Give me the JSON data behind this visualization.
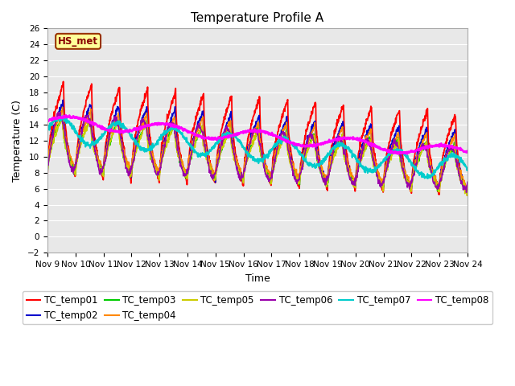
{
  "title": "Temperature Profile A",
  "xlabel": "Time",
  "ylabel": "Temperature (C)",
  "ylim": [
    -2,
    26
  ],
  "annotation": "HS_met",
  "series_colors": {
    "TC_temp01": "#ff0000",
    "TC_temp02": "#0000cc",
    "TC_temp03": "#00cc00",
    "TC_temp04": "#ff8800",
    "TC_temp05": "#cccc00",
    "TC_temp06": "#9900aa",
    "TC_temp07": "#00cccc",
    "TC_temp08": "#ff00ff"
  },
  "background_color": "#e8e8e8",
  "figure_background": "#ffffff",
  "annotation_bg": "#ffff99",
  "annotation_border": "#993300",
  "grid_color": "#ffffff",
  "title_fontsize": 11,
  "axis_label_fontsize": 9,
  "tick_fontsize": 7.5,
  "legend_fontsize": 8.5
}
